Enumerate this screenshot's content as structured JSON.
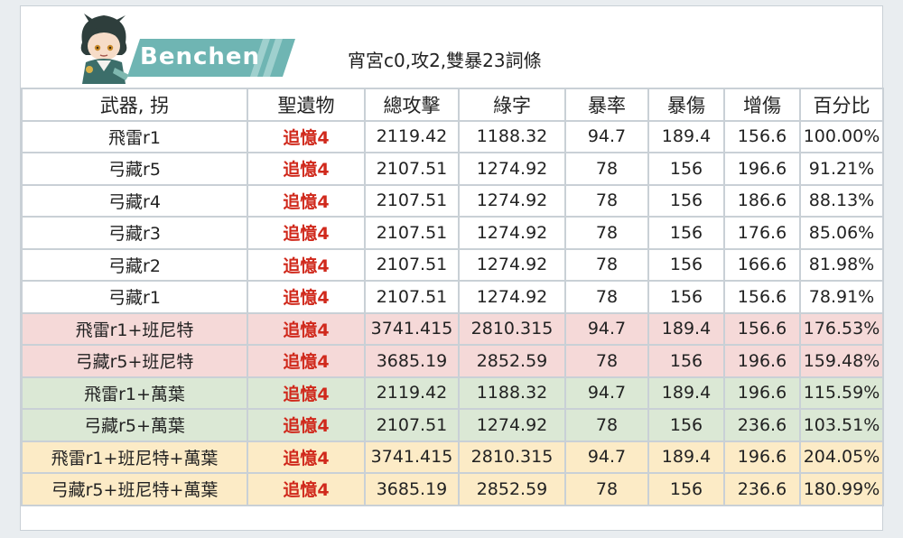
{
  "header": {
    "name": "Benchen",
    "subtitle": "宵宮c0,攻2,雙暴23詞條"
  },
  "table": {
    "columns": [
      "武器, 拐",
      "聖遺物",
      "總攻擊",
      "綠字",
      "暴率",
      "暴傷",
      "增傷",
      "百分比"
    ],
    "rows": [
      {
        "style": "w",
        "cells": [
          "飛雷r1",
          "追憶4",
          "2119.42",
          "1188.32",
          "94.7",
          "189.4",
          "156.6",
          "100.00%"
        ]
      },
      {
        "style": "w",
        "cells": [
          "弓藏r5",
          "追憶4",
          "2107.51",
          "1274.92",
          "78",
          "156",
          "196.6",
          "91.21%"
        ]
      },
      {
        "style": "w",
        "cells": [
          "弓藏r4",
          "追憶4",
          "2107.51",
          "1274.92",
          "78",
          "156",
          "186.6",
          "88.13%"
        ]
      },
      {
        "style": "w",
        "cells": [
          "弓藏r3",
          "追憶4",
          "2107.51",
          "1274.92",
          "78",
          "156",
          "176.6",
          "85.06%"
        ]
      },
      {
        "style": "w",
        "cells": [
          "弓藏r2",
          "追憶4",
          "2107.51",
          "1274.92",
          "78",
          "156",
          "166.6",
          "81.98%"
        ]
      },
      {
        "style": "w",
        "cells": [
          "弓藏r1",
          "追憶4",
          "2107.51",
          "1274.92",
          "78",
          "156",
          "156.6",
          "78.91%"
        ]
      },
      {
        "style": "r",
        "cells": [
          "飛雷r1+班尼特",
          "追憶4",
          "3741.415",
          "2810.315",
          "94.7",
          "189.4",
          "156.6",
          "176.53%"
        ]
      },
      {
        "style": "r",
        "cells": [
          "弓藏r5+班尼特",
          "追憶4",
          "3685.19",
          "2852.59",
          "78",
          "156",
          "196.6",
          "159.48%"
        ]
      },
      {
        "style": "g",
        "cells": [
          "飛雷r1+萬葉",
          "追憶4",
          "2119.42",
          "1188.32",
          "94.7",
          "189.4",
          "196.6",
          "115.59%"
        ]
      },
      {
        "style": "g",
        "cells": [
          "弓藏r5+萬葉",
          "追憶4",
          "2107.51",
          "1274.92",
          "78",
          "156",
          "236.6",
          "103.51%"
        ]
      },
      {
        "style": "y",
        "cells": [
          "飛雷r1+班尼特+萬葉",
          "追憶4",
          "3741.415",
          "2810.315",
          "94.7",
          "189.4",
          "196.6",
          "204.05%"
        ]
      },
      {
        "style": "y",
        "cells": [
          "弓藏r5+班尼特+萬葉",
          "追憶4",
          "3685.19",
          "2852.59",
          "78",
          "156",
          "236.6",
          "180.99%"
        ]
      }
    ]
  }
}
